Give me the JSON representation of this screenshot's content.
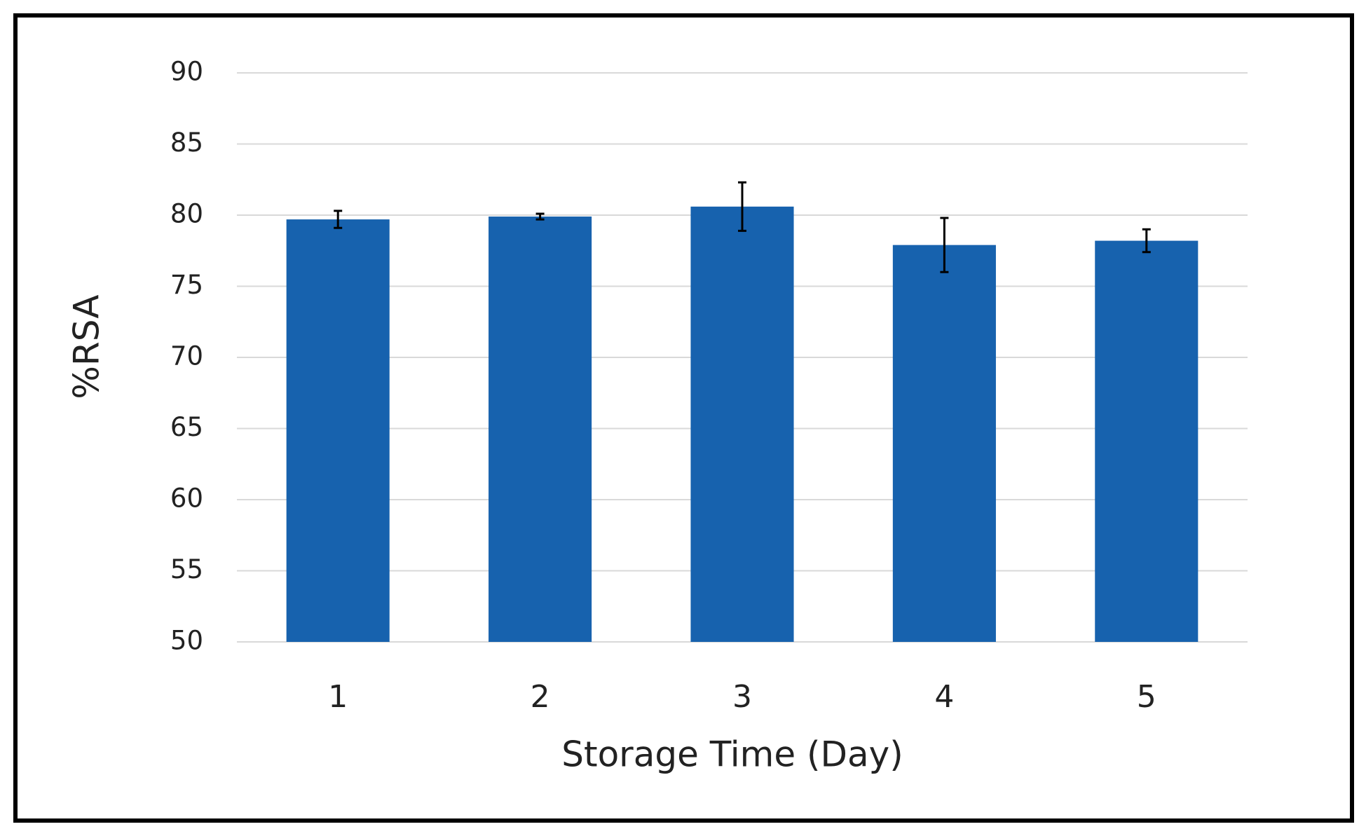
{
  "chart_data": {
    "type": "bar",
    "x_label": "Storage Time (Day)",
    "y_label": "%RSA",
    "categories": [
      "1",
      "2",
      "3",
      "4",
      "5"
    ],
    "values": [
      79.7,
      79.9,
      80.6,
      77.9,
      78.2
    ],
    "errors": [
      0.6,
      0.2,
      1.7,
      1.9,
      0.8
    ],
    "color": "#1762ae",
    "ylim": [
      50,
      90
    ],
    "yticks": [
      50,
      55,
      60,
      65,
      70,
      75,
      80,
      85,
      90
    ],
    "grid": true
  }
}
